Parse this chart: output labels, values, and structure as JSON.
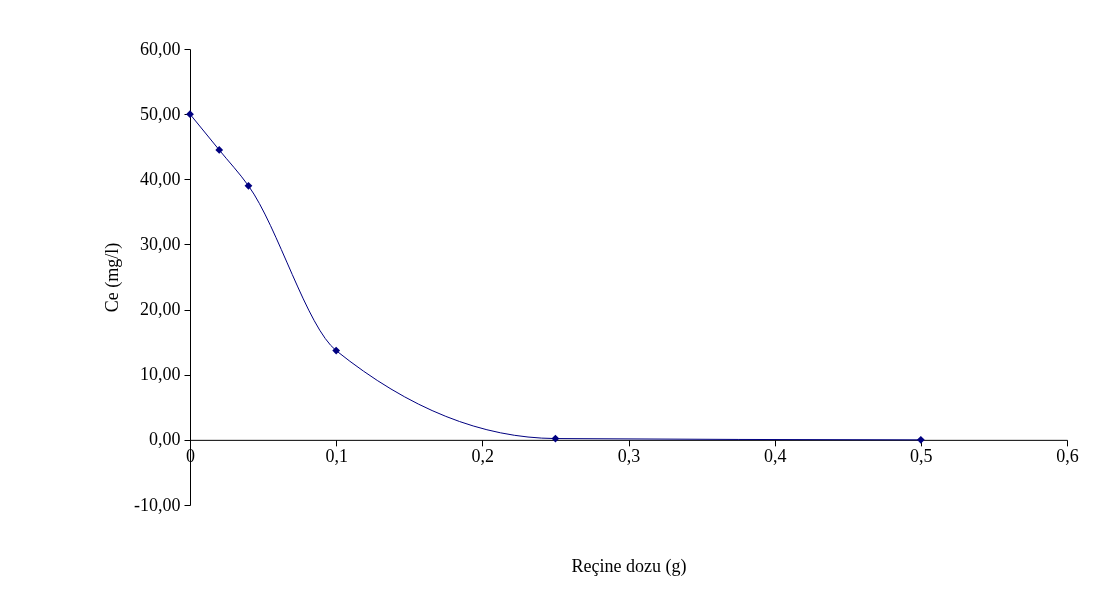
{
  "chart_data": {
    "type": "line",
    "xlabel": "Reçine dozu (g)",
    "ylabel": "Ce (mg/l)",
    "x": [
      0,
      0.02,
      0.04,
      0.1,
      0.25,
      0.5
    ],
    "series": [
      {
        "color": "#000080",
        "values": [
          50,
          44.5,
          39,
          13.7,
          0.2,
          0
        ]
      }
    ],
    "xlim": [
      0,
      0.6
    ],
    "ylim": [
      -10,
      60
    ],
    "xticks": [
      0,
      {
        "value": 0.1,
        "label": "0,1"
      },
      {
        "value": 0.2,
        "label": "0,2"
      },
      {
        "value": 0.3,
        "label": "0,3"
      },
      {
        "value": 0.4,
        "label": "0,4"
      },
      {
        "value": 0.5,
        "label": "0,5"
      },
      {
        "value": 0.6,
        "label": "0,6"
      }
    ],
    "yticks": [
      {
        "value": -10,
        "label": "-10,00"
      },
      {
        "value": 0,
        "label": "0,00"
      },
      {
        "value": 10,
        "label": "10,00"
      },
      {
        "value": 20,
        "label": "20,00"
      },
      {
        "value": 30,
        "label": "30,00"
      },
      {
        "value": 40,
        "label": "40,00"
      },
      {
        "value": 50,
        "label": "50,00"
      },
      {
        "value": 60,
        "label": "60,00"
      }
    ],
    "marker": "diamond",
    "line_style": "solid"
  }
}
